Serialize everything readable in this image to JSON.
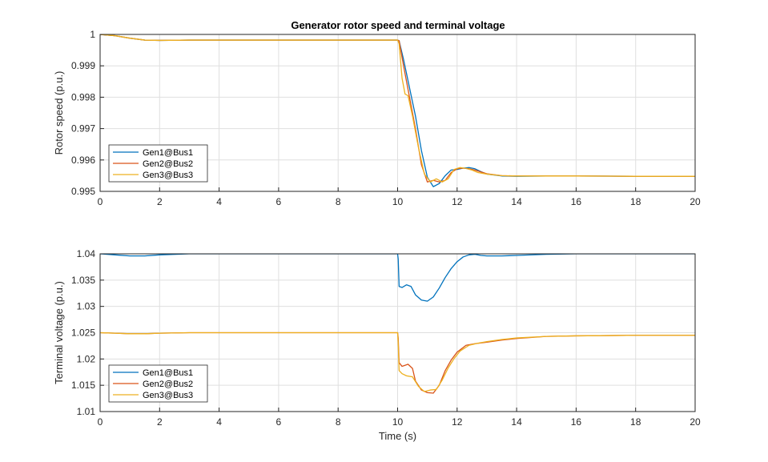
{
  "chart_data": [
    {
      "type": "line",
      "title": "Generator rotor speed and terminal voltage",
      "xlabel": "",
      "ylabel": "Rotor speed (p.u.)",
      "xlim": [
        0,
        20
      ],
      "ylim": [
        0.995,
        1
      ],
      "xticks": [
        "0",
        "2",
        "4",
        "6",
        "8",
        "10",
        "12",
        "14",
        "16",
        "18",
        "20"
      ],
      "yticks": [
        "0.995",
        "0.996",
        "0.997",
        "0.998",
        "0.999",
        "1"
      ],
      "grid": true,
      "legend_position": "bottom-left",
      "series": [
        {
          "name": "Gen1@Bus1",
          "color": "#0072BD",
          "x": [
            0,
            0.5,
            1,
            1.5,
            2,
            3,
            5,
            8,
            10,
            10.05,
            10.2,
            10.4,
            10.6,
            10.8,
            11.0,
            11.2,
            11.4,
            11.6,
            11.8,
            12.0,
            12.2,
            12.4,
            12.6,
            12.8,
            13.0,
            13.5,
            14,
            15,
            16,
            18,
            20
          ],
          "y": [
            1.0,
            0.99996,
            0.99988,
            0.99982,
            0.99981,
            0.99982,
            0.99982,
            0.99982,
            0.99982,
            0.9998,
            0.9992,
            0.9983,
            0.9974,
            0.9963,
            0.99545,
            0.99515,
            0.99525,
            0.9955,
            0.99568,
            0.9957,
            0.99574,
            0.99576,
            0.99572,
            0.99563,
            0.99555,
            0.99549,
            0.99548,
            0.99549,
            0.99549,
            0.99548,
            0.99548
          ]
        },
        {
          "name": "Gen2@Bus2",
          "color": "#D95319",
          "x": [
            0,
            0.5,
            1,
            1.5,
            2,
            3,
            5,
            8,
            10,
            10.05,
            10.2,
            10.4,
            10.6,
            10.8,
            11.0,
            11.2,
            11.4,
            11.6,
            11.8,
            12.0,
            12.2,
            12.4,
            12.6,
            12.8,
            13.0,
            13.5,
            14,
            15,
            16,
            18,
            20
          ],
          "y": [
            1.0,
            0.99996,
            0.99988,
            0.99982,
            0.99981,
            0.99982,
            0.99982,
            0.99982,
            0.99982,
            0.9998,
            0.999,
            0.998,
            0.997,
            0.99585,
            0.9953,
            0.99535,
            0.9953,
            0.99535,
            0.9956,
            0.99572,
            0.99574,
            0.99572,
            0.99568,
            0.99562,
            0.99556,
            0.9955,
            0.99549,
            0.99549,
            0.99549,
            0.99548,
            0.99548
          ]
        },
        {
          "name": "Gen3@Bus3",
          "color": "#EDB120",
          "x": [
            0,
            0.5,
            1,
            1.5,
            2,
            3,
            5,
            8,
            10,
            10.05,
            10.15,
            10.25,
            10.35,
            10.5,
            10.7,
            10.9,
            11.1,
            11.3,
            11.5,
            11.7,
            11.9,
            12.1,
            12.3,
            12.5,
            12.7,
            13.0,
            13.5,
            14,
            15,
            16,
            18,
            20
          ],
          "y": [
            1.0,
            0.99996,
            0.99988,
            0.99982,
            0.99981,
            0.99982,
            0.99982,
            0.99982,
            0.99982,
            0.9997,
            0.9986,
            0.9981,
            0.99805,
            0.9974,
            0.9964,
            0.99555,
            0.9953,
            0.9954,
            0.9953,
            0.9954,
            0.9957,
            0.99576,
            0.99573,
            0.99568,
            0.9956,
            0.99555,
            0.9955,
            0.99549,
            0.99549,
            0.99549,
            0.99548,
            0.99548
          ]
        }
      ]
    },
    {
      "type": "line",
      "title": "",
      "xlabel": "Time (s)",
      "ylabel": "Terminal voltage (p.u.)",
      "xlim": [
        0,
        20
      ],
      "ylim": [
        1.01,
        1.04
      ],
      "xticks": [
        "0",
        "2",
        "4",
        "6",
        "8",
        "10",
        "12",
        "14",
        "16",
        "18",
        "20"
      ],
      "yticks": [
        "1.01",
        "1.015",
        "1.02",
        "1.025",
        "1.03",
        "1.035",
        "1.04"
      ],
      "grid": true,
      "legend_position": "bottom-left",
      "series": [
        {
          "name": "Gen1@Bus1",
          "color": "#0072BD",
          "x": [
            0,
            0.5,
            1,
            1.5,
            2,
            3,
            5,
            8,
            10,
            10.02,
            10.05,
            10.15,
            10.3,
            10.45,
            10.6,
            10.8,
            11.0,
            11.2,
            11.4,
            11.6,
            11.8,
            12.0,
            12.2,
            12.4,
            12.6,
            12.8,
            13.0,
            13.5,
            14,
            15,
            16,
            18,
            20
          ],
          "y": [
            1.04,
            1.0398,
            1.0396,
            1.0396,
            1.0398,
            1.04,
            1.04,
            1.04,
            1.04,
            1.039,
            1.0338,
            1.0336,
            1.0341,
            1.0338,
            1.0322,
            1.0312,
            1.031,
            1.0318,
            1.0335,
            1.0355,
            1.0372,
            1.0385,
            1.0394,
            1.0398,
            1.0399,
            1.0397,
            1.0396,
            1.0396,
            1.0397,
            1.0399,
            1.04,
            1.04,
            1.04
          ]
        },
        {
          "name": "Gen2@Bus2",
          "color": "#D95319",
          "x": [
            0,
            0.5,
            1,
            1.5,
            2,
            3,
            5,
            8,
            10,
            10.02,
            10.05,
            10.15,
            10.25,
            10.35,
            10.5,
            10.6,
            10.8,
            11.0,
            11.2,
            11.4,
            11.6,
            11.8,
            12.0,
            12.3,
            12.6,
            13.0,
            13.5,
            14,
            15,
            16,
            18,
            20
          ],
          "y": [
            1.025,
            1.0249,
            1.0248,
            1.0248,
            1.0249,
            1.025,
            1.025,
            1.025,
            1.025,
            1.024,
            1.0193,
            1.0186,
            1.0188,
            1.019,
            1.0182,
            1.0158,
            1.0141,
            1.0136,
            1.0135,
            1.015,
            1.0178,
            1.0198,
            1.0213,
            1.0226,
            1.0229,
            1.0232,
            1.0236,
            1.0239,
            1.0243,
            1.0244,
            1.0245,
            1.0245
          ]
        },
        {
          "name": "Gen3@Bus3",
          "color": "#EDB120",
          "x": [
            0,
            0.5,
            1,
            1.5,
            2,
            3,
            5,
            8,
            10,
            10.02,
            10.05,
            10.15,
            10.3,
            10.5,
            10.7,
            10.9,
            11.1,
            11.3,
            11.5,
            11.7,
            11.9,
            12.1,
            12.4,
            12.7,
            13.0,
            13.5,
            14,
            15,
            16,
            18,
            20
          ],
          "y": [
            1.025,
            1.0249,
            1.0248,
            1.0248,
            1.0249,
            1.025,
            1.025,
            1.025,
            1.025,
            1.023,
            1.0178,
            1.0172,
            1.0168,
            1.0166,
            1.0148,
            1.0138,
            1.0141,
            1.0142,
            1.016,
            1.0183,
            1.0201,
            1.0215,
            1.0226,
            1.023,
            1.0233,
            1.0237,
            1.024,
            1.0243,
            1.0244,
            1.0245,
            1.0245
          ]
        }
      ]
    }
  ]
}
